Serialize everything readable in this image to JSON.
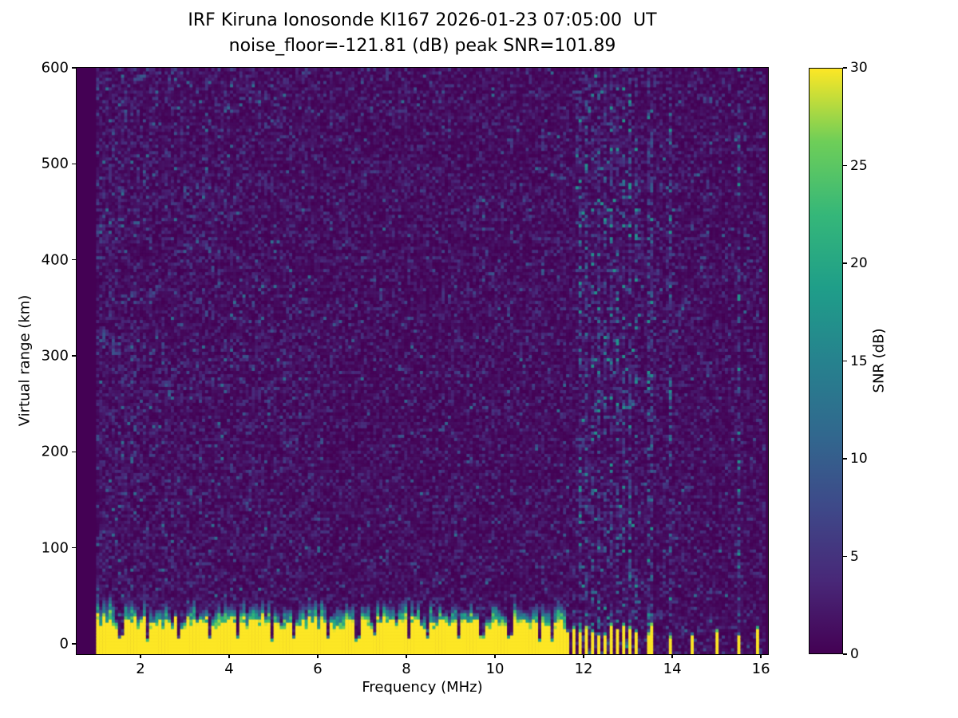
{
  "chart_data": {
    "type": "heatmap",
    "title": "IRF Kiruna Ionosonde KI167 2026-01-23 07:05:00  UT",
    "subtitle": "noise_floor=-121.81 (dB) peak SNR=101.89",
    "station": "IRF Kiruna Ionosonde",
    "station_code": "KI167",
    "timestamp_ut": "2026-01-23 07:05:00",
    "noise_floor_db": -121.81,
    "peak_snr_db": 101.89,
    "xlabel": "Frequency (MHz)",
    "ylabel": "Virtual range (km)",
    "colorbar_label": "SNR (dB)",
    "xlim": [
      0.56,
      16.16
    ],
    "ylim": [
      -10.8,
      600
    ],
    "x_ticks": [
      2,
      4,
      6,
      8,
      10,
      12,
      14,
      16
    ],
    "y_ticks": [
      0,
      100,
      200,
      300,
      400,
      500,
      600
    ],
    "colorbar_ticks": [
      0,
      5,
      10,
      15,
      20,
      25,
      30
    ],
    "colorbar_range": [
      0,
      30
    ],
    "colormap": "viridis",
    "colormap_stops": [
      [
        0.0,
        "#440154"
      ],
      [
        0.125,
        "#482878"
      ],
      [
        0.25,
        "#3e4989"
      ],
      [
        0.375,
        "#31688e"
      ],
      [
        0.5,
        "#26828e"
      ],
      [
        0.625,
        "#1f9e89"
      ],
      [
        0.75,
        "#35b779"
      ],
      [
        0.875,
        "#6ece58"
      ],
      [
        1.0,
        "#fde725"
      ]
    ],
    "data_freq_range_mhz": [
      1.0,
      16.1
    ],
    "background_noise_db_range": [
      0,
      5
    ],
    "background_description": "Dark purple background with sparse blue/teal noise speckle over the full virtual-range extent",
    "ground_clutter": {
      "freq_end_mhz": 11.6,
      "saturated_top_km_range": [
        14,
        26
      ],
      "fade_top_km_range": [
        25,
        55
      ],
      "description": "Saturated (30 dB) yellow ground-return band from the bottom of the plot up to ~25 km with a green/teal fade above, continuous from 1.0 to 11.6 MHz",
      "notch_freqs_mhz": [
        1.57,
        2.16,
        2.86,
        3.55,
        4.22,
        4.95,
        5.45,
        6.25,
        6.9,
        7.3,
        8.05,
        8.5,
        9.2,
        9.7,
        10.35,
        11.0,
        11.3
      ]
    },
    "clutter_stripes_mhz": [
      11.62,
      11.76,
      11.9,
      12.04,
      12.18,
      12.32,
      12.46,
      12.6,
      12.76,
      12.9,
      13.05,
      13.2,
      13.5,
      13.95,
      14.45,
      15.0,
      15.5,
      15.9
    ],
    "clutter_stripes_description": "Above 11.6 MHz the ground return breaks into narrow intermittent yellow stripes",
    "interference_columns_mhz": [
      11.9,
      12.04,
      12.18,
      12.32,
      12.46,
      12.6,
      12.76,
      12.9,
      13.05,
      13.2,
      13.5,
      13.95,
      15.5
    ],
    "interference_description": "Faint full-height teal speckle columns (RFI) mainly between 11.9 and 13.5 MHz"
  }
}
